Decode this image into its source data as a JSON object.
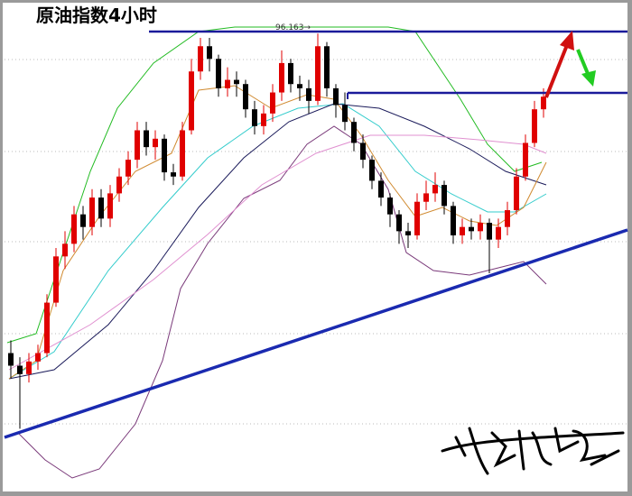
{
  "chart_data": {
    "type": "candlestick",
    "title": "原油指数4小时",
    "annotation": "96.163→",
    "ylim": [
      85.2,
      97.0
    ],
    "up_color": "#e00000",
    "down_color": "#000000",
    "open": [
      88.6,
      88.3,
      88.1,
      88.4,
      88.6,
      89.8,
      90.9,
      91.2,
      91.9,
      91.6,
      92.3,
      91.8,
      92.4,
      92.8,
      93.2,
      93.9,
      93.5,
      93.7,
      92.9,
      92.8,
      93.9,
      95.3,
      95.9,
      95.6,
      94.9,
      95.1,
      95.0,
      94.4,
      94.0,
      94.3,
      94.8,
      95.5,
      95.0,
      94.9,
      94.6,
      95.9,
      94.9,
      94.5,
      94.1,
      93.6,
      93.2,
      92.7,
      92.3,
      91.9,
      91.5,
      91.4,
      92.2,
      92.4,
      92.6,
      92.1,
      91.4,
      91.6,
      91.5,
      91.7,
      91.3,
      91.6,
      92.0,
      92.8,
      93.6,
      94.4
    ],
    "high": [
      88.9,
      88.5,
      88.6,
      88.8,
      90.0,
      91.1,
      91.5,
      92.1,
      92.1,
      92.5,
      92.5,
      92.6,
      93.0,
      93.4,
      94.1,
      94.1,
      93.9,
      93.8,
      93.1,
      94.1,
      95.6,
      96.1,
      96.1,
      95.7,
      95.4,
      95.3,
      95.1,
      94.6,
      94.5,
      95.0,
      95.8,
      95.6,
      95.2,
      95.1,
      96.2,
      96.0,
      95.0,
      94.8,
      94.2,
      93.8,
      93.3,
      92.9,
      92.4,
      92.0,
      91.7,
      92.4,
      92.7,
      92.9,
      92.7,
      92.2,
      91.8,
      91.8,
      91.9,
      91.8,
      91.8,
      92.2,
      93.0,
      93.8,
      94.6,
      94.9
    ],
    "low": [
      88.0,
      86.8,
      87.9,
      88.2,
      88.5,
      89.7,
      90.6,
      91.0,
      91.3,
      91.4,
      91.6,
      91.6,
      92.2,
      92.6,
      93.0,
      93.3,
      93.2,
      92.7,
      92.6,
      92.7,
      93.8,
      95.1,
      95.3,
      94.7,
      94.7,
      94.7,
      94.2,
      93.8,
      93.8,
      94.1,
      94.6,
      94.8,
      94.6,
      94.3,
      94.5,
      94.7,
      94.2,
      93.9,
      93.4,
      93.0,
      92.5,
      92.1,
      91.6,
      91.2,
      91.1,
      91.3,
      92.0,
      92.2,
      91.9,
      91.2,
      91.2,
      91.3,
      91.3,
      90.5,
      91.1,
      91.4,
      91.9,
      92.7,
      93.5,
      94.2
    ],
    "close": [
      88.3,
      88.1,
      88.4,
      88.6,
      89.8,
      90.9,
      91.2,
      91.9,
      91.6,
      92.3,
      91.8,
      92.4,
      92.8,
      93.2,
      93.9,
      93.5,
      93.7,
      92.9,
      92.8,
      93.9,
      95.3,
      95.9,
      95.6,
      94.9,
      95.1,
      95.0,
      94.4,
      94.0,
      94.3,
      94.8,
      95.5,
      95.0,
      94.9,
      94.6,
      95.9,
      94.9,
      94.5,
      94.1,
      93.6,
      93.2,
      92.7,
      92.3,
      91.9,
      91.5,
      91.4,
      92.2,
      92.4,
      92.6,
      92.1,
      91.4,
      91.6,
      91.5,
      91.7,
      91.3,
      91.6,
      92.0,
      92.8,
      93.6,
      94.4,
      94.7
    ]
  }
}
